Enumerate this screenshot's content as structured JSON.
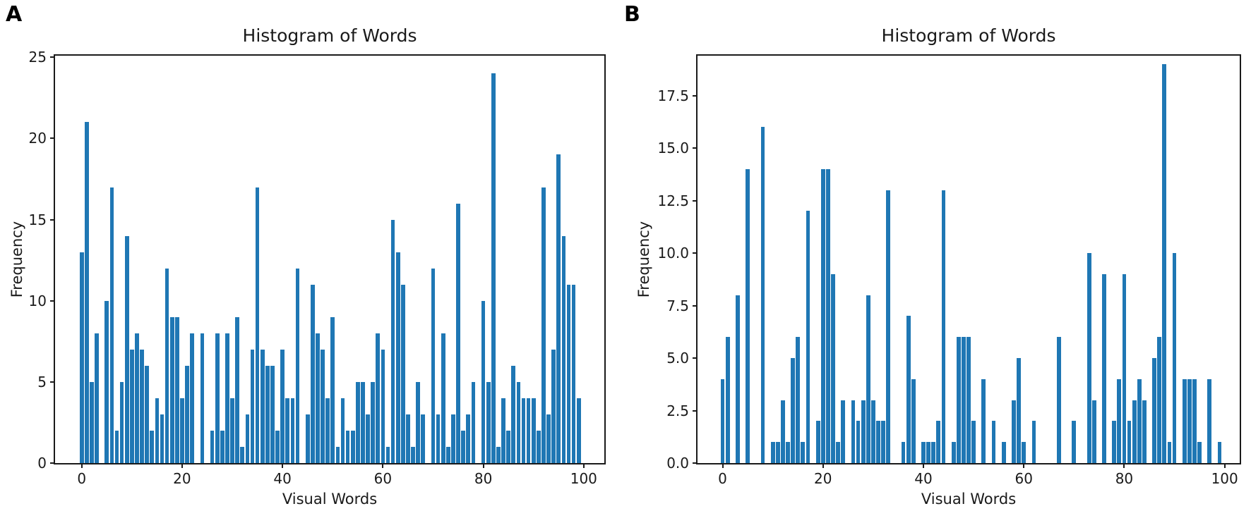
{
  "figure": {
    "background": "#ffffff",
    "bar_color": "#1f77b4",
    "spine_color": "#1a1a1a"
  },
  "chart_data": [
    {
      "panel_label": "A",
      "type": "bar",
      "title": "Histogram of Words",
      "xlabel": "Visual Words",
      "ylabel": "Frequency",
      "bar_color": "#1f77b4",
      "x": [
        0,
        1,
        2,
        3,
        4,
        5,
        6,
        7,
        8,
        9,
        10,
        11,
        12,
        13,
        14,
        15,
        16,
        17,
        18,
        19,
        20,
        21,
        22,
        23,
        24,
        25,
        26,
        27,
        28,
        29,
        30,
        31,
        32,
        33,
        34,
        35,
        36,
        37,
        38,
        39,
        40,
        41,
        42,
        43,
        44,
        45,
        46,
        47,
        48,
        49,
        50,
        51,
        52,
        53,
        54,
        55,
        56,
        57,
        58,
        59,
        60,
        61,
        62,
        63,
        64,
        65,
        66,
        67,
        68,
        69,
        70,
        71,
        72,
        73,
        74,
        75,
        76,
        77,
        78,
        79,
        80,
        81,
        82,
        83,
        84,
        85,
        86,
        87,
        88,
        89,
        90,
        91,
        92,
        93,
        94,
        95,
        96,
        97,
        98,
        99
      ],
      "values": [
        13,
        21,
        5,
        8,
        0,
        10,
        17,
        2,
        5,
        14,
        7,
        8,
        7,
        6,
        2,
        4,
        3,
        12,
        9,
        9,
        4,
        6,
        8,
        0,
        8,
        0,
        2,
        8,
        2,
        8,
        4,
        9,
        1,
        3,
        7,
        17,
        7,
        6,
        6,
        2,
        7,
        4,
        4,
        12,
        0,
        3,
        11,
        8,
        7,
        4,
        9,
        1,
        4,
        2,
        2,
        5,
        5,
        3,
        5,
        8,
        7,
        1,
        15,
        13,
        11,
        3,
        1,
        5,
        3,
        0,
        12,
        3,
        8,
        1,
        3,
        16,
        2,
        3,
        5,
        0,
        10,
        5,
        24,
        1,
        4,
        2,
        6,
        5,
        4,
        4,
        4,
        2,
        17,
        3,
        7,
        19,
        14,
        11,
        11,
        4
      ],
      "xlim": [
        -5.3,
        104.1
      ],
      "ylim": [
        0,
        25.1
      ],
      "xticks": [
        0,
        20,
        40,
        60,
        80,
        100
      ],
      "xtick_labels": [
        "0",
        "20",
        "40",
        "60",
        "80",
        "100"
      ],
      "yticks": [
        0,
        5,
        10,
        15,
        20,
        25
      ],
      "ytick_labels": [
        "0",
        "5",
        "10",
        "15",
        "20",
        "25"
      ],
      "grid": false,
      "legend": "none",
      "bar_rel_width": 0.8
    },
    {
      "panel_label": "B",
      "type": "bar",
      "title": "Histogram of Words",
      "xlabel": "Visual Words",
      "ylabel": "Frequency",
      "bar_color": "#1f77b4",
      "x": [
        0,
        1,
        2,
        3,
        4,
        5,
        6,
        7,
        8,
        9,
        10,
        11,
        12,
        13,
        14,
        15,
        16,
        17,
        18,
        19,
        20,
        21,
        22,
        23,
        24,
        25,
        26,
        27,
        28,
        29,
        30,
        31,
        32,
        33,
        34,
        35,
        36,
        37,
        38,
        39,
        40,
        41,
        42,
        43,
        44,
        45,
        46,
        47,
        48,
        49,
        50,
        51,
        52,
        53,
        54,
        55,
        56,
        57,
        58,
        59,
        60,
        61,
        62,
        63,
        64,
        65,
        66,
        67,
        68,
        69,
        70,
        71,
        72,
        73,
        74,
        75,
        76,
        77,
        78,
        79,
        80,
        81,
        82,
        83,
        84,
        85,
        86,
        87,
        88,
        89,
        90,
        91,
        92,
        93,
        94,
        95,
        96,
        97,
        98,
        99
      ],
      "values": [
        4,
        6,
        0,
        8,
        0,
        14,
        0,
        0,
        16,
        0,
        1,
        1,
        3,
        1,
        5,
        6,
        1,
        12,
        0,
        2,
        14,
        14,
        9,
        1,
        3,
        0,
        3,
        2,
        3,
        8,
        3,
        2,
        2,
        13,
        0,
        0,
        1,
        7,
        4,
        0,
        1,
        1,
        1,
        2,
        13,
        0,
        1,
        6,
        6,
        6,
        2,
        0,
        4,
        0,
        2,
        0,
        1,
        0,
        3,
        5,
        1,
        0,
        2,
        0,
        0,
        0,
        0,
        6,
        0,
        0,
        2,
        0,
        0,
        10,
        3,
        0,
        9,
        0,
        2,
        4,
        9,
        2,
        3,
        4,
        3,
        0,
        5,
        6,
        19,
        1,
        10,
        0,
        4,
        4,
        4,
        1,
        0,
        4,
        0,
        1
      ],
      "xlim": [
        -5.0,
        103.0
      ],
      "ylim": [
        0,
        19.4
      ],
      "xticks": [
        0,
        20,
        40,
        60,
        80,
        100
      ],
      "xtick_labels": [
        "0",
        "20",
        "40",
        "60",
        "80",
        "100"
      ],
      "yticks": [
        0,
        2.5,
        5,
        7.5,
        10,
        12.5,
        15,
        17.5
      ],
      "ytick_labels": [
        "0.0",
        "2.5",
        "5.0",
        "7.5",
        "10.0",
        "12.5",
        "15.0",
        "17.5"
      ],
      "grid": false,
      "legend": "none",
      "bar_rel_width": 0.8
    }
  ]
}
